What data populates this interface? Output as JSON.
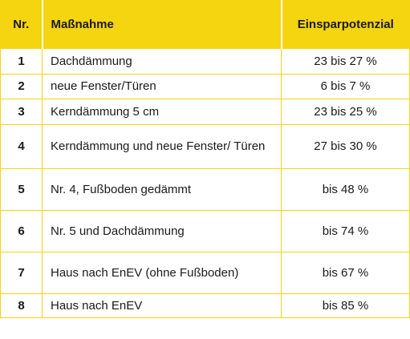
{
  "table": {
    "headers": {
      "nr": "Nr.",
      "massnahme": "Maßnahme",
      "einsparpotenzial": "Einsparpotenzial"
    },
    "rows": [
      {
        "nr": "1",
        "massnahme": "Dachdämmung",
        "einsparpotenzial": "23 bis 27 %"
      },
      {
        "nr": "2",
        "massnahme": "neue Fenster/Türen",
        "einsparpotenzial": "6 bis 7 %"
      },
      {
        "nr": "3",
        "massnahme": "Kerndämmung 5 cm",
        "einsparpotenzial": "23 bis 25 %"
      },
      {
        "nr": "4",
        "massnahme": "Kerndämmung und neue Fenster/ Türen",
        "einsparpotenzial": "27 bis 30 %"
      },
      {
        "nr": "5",
        "massnahme": "Nr. 4, Fußboden gedämmt",
        "einsparpotenzial": "bis 48 %"
      },
      {
        "nr": "6",
        "massnahme": "Nr. 5 und Dachdämmung",
        "einsparpotenzial": "bis 74 %"
      },
      {
        "nr": "7",
        "massnahme": "Haus nach EnEV (ohne Fußboden)",
        "einsparpotenzial": "bis 67 %"
      },
      {
        "nr": "8",
        "massnahme": "Haus nach EnEV",
        "einsparpotenzial": "bis 85 %"
      }
    ]
  },
  "colors": {
    "header_background": "#f5d410",
    "grid_lines": "#f5d410",
    "text": "#1a1a1a"
  }
}
